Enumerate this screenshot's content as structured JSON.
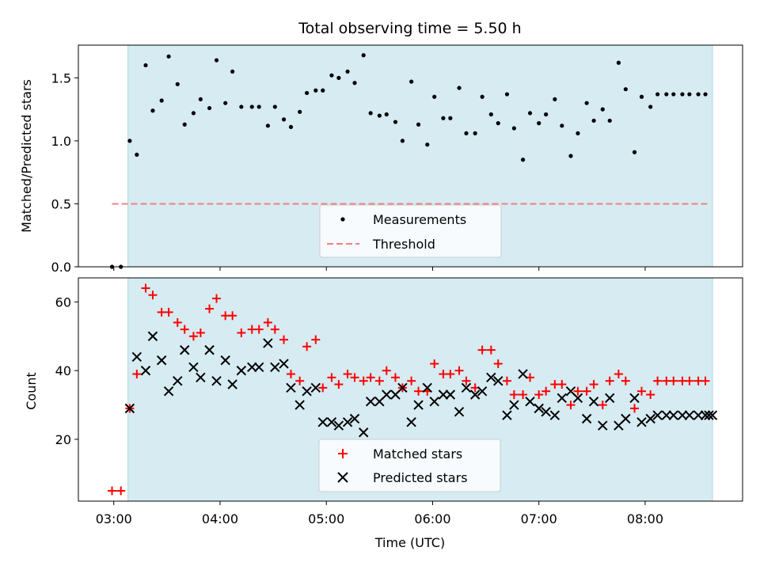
{
  "chart_data": [
    {
      "type": "scatter",
      "title": "Total observing time = 5.50 h",
      "xlabel": "",
      "ylabel": "Matched/Predicted stars",
      "ylim": [
        0,
        1.76
      ],
      "yticks": [
        "0.0",
        "0.5",
        "1.0",
        "1.5"
      ],
      "xlim": [
        "02:40",
        "08:55"
      ],
      "observing_window": [
        "03:08",
        "08:38"
      ],
      "threshold": {
        "name": "Threshold",
        "value": 0.5,
        "x_range": [
          "02:59",
          "08:36"
        ],
        "color": "#f08080"
      },
      "legend": {
        "placement": "lower-center",
        "entries": [
          "Measurements",
          "Threshold"
        ]
      },
      "series": [
        {
          "name": "Measurements",
          "color": "#000000",
          "marker": "dot",
          "x": [
            "02:59",
            "03:04",
            "03:09",
            "03:13",
            "03:18",
            "03:22",
            "03:27",
            "03:31",
            "03:36",
            "03:40",
            "03:45",
            "03:49",
            "03:54",
            "03:58",
            "04:03",
            "04:07",
            "04:12",
            "04:18",
            "04:22",
            "04:27",
            "04:31",
            "04:36",
            "04:40",
            "04:45",
            "04:49",
            "04:54",
            "04:58",
            "05:03",
            "05:07",
            "05:12",
            "05:16",
            "05:21",
            "05:25",
            "05:30",
            "05:34",
            "05:39",
            "05:43",
            "05:48",
            "05:52",
            "05:57",
            "06:01",
            "06:06",
            "06:10",
            "06:15",
            "06:19",
            "06:24",
            "06:28",
            "06:33",
            "06:37",
            "06:42",
            "06:46",
            "06:51",
            "06:55",
            "07:00",
            "07:04",
            "07:09",
            "07:13",
            "07:18",
            "07:22",
            "07:27",
            "07:31",
            "07:36",
            "07:40",
            "07:45",
            "07:49",
            "07:54",
            "07:58",
            "08:03",
            "08:07",
            "08:12",
            "08:16",
            "08:21",
            "08:25",
            "08:30",
            "08:34"
          ],
          "y": [
            0.0,
            0.0,
            1.0,
            0.89,
            1.6,
            1.24,
            1.32,
            1.67,
            1.45,
            1.13,
            1.22,
            1.33,
            1.26,
            1.64,
            1.3,
            1.55,
            1.27,
            1.27,
            1.27,
            1.12,
            1.27,
            1.17,
            1.11,
            1.23,
            1.38,
            1.4,
            1.4,
            1.52,
            1.5,
            1.55,
            1.46,
            1.68,
            1.22,
            1.2,
            1.21,
            1.15,
            1.0,
            1.47,
            1.13,
            0.97,
            1.35,
            1.18,
            1.18,
            1.42,
            1.06,
            1.06,
            1.35,
            1.21,
            1.14,
            1.37,
            1.1,
            0.85,
            1.22,
            1.14,
            1.21,
            1.33,
            1.12,
            0.88,
            1.06,
            1.3,
            1.16,
            1.25,
            1.16,
            1.62,
            1.41,
            0.91,
            1.35,
            1.27,
            1.37,
            1.37,
            1.37,
            1.37,
            1.37,
            1.37,
            1.37
          ]
        }
      ]
    },
    {
      "type": "scatter",
      "title": "",
      "xlabel": "Time (UTC)",
      "ylabel": "Count",
      "ylim": [
        2,
        67
      ],
      "yticks": [
        "20",
        "40",
        "60"
      ],
      "xticks": [
        "03:00",
        "04:00",
        "05:00",
        "06:00",
        "07:00",
        "08:00"
      ],
      "xlim": [
        "02:40",
        "08:55"
      ],
      "observing_window": [
        "03:08",
        "08:38"
      ],
      "legend": {
        "placement": "lower-center",
        "entries": [
          "Matched stars",
          "Predicted stars"
        ]
      },
      "series": [
        {
          "name": "Matched stars",
          "color": "#ff0000",
          "marker": "plus",
          "x": [
            "02:59",
            "03:04",
            "03:09",
            "03:13",
            "03:18",
            "03:22",
            "03:27",
            "03:31",
            "03:36",
            "03:40",
            "03:45",
            "03:49",
            "03:54",
            "03:58",
            "04:03",
            "04:07",
            "04:12",
            "04:18",
            "04:22",
            "04:27",
            "04:31",
            "04:36",
            "04:40",
            "04:45",
            "04:49",
            "04:54",
            "04:58",
            "05:03",
            "05:07",
            "05:12",
            "05:16",
            "05:21",
            "05:25",
            "05:30",
            "05:34",
            "05:39",
            "05:43",
            "05:48",
            "05:52",
            "05:57",
            "06:01",
            "06:06",
            "06:10",
            "06:15",
            "06:19",
            "06:24",
            "06:28",
            "06:33",
            "06:37",
            "06:42",
            "06:46",
            "06:51",
            "06:55",
            "07:00",
            "07:04",
            "07:09",
            "07:13",
            "07:18",
            "07:22",
            "07:27",
            "07:31",
            "07:36",
            "07:40",
            "07:45",
            "07:49",
            "07:54",
            "07:58",
            "08:03",
            "08:07",
            "08:12",
            "08:16",
            "08:21",
            "08:25",
            "08:30",
            "08:34"
          ],
          "y": [
            5,
            5,
            29,
            39,
            64,
            62,
            57,
            57,
            54,
            52,
            50,
            51,
            58,
            61,
            56,
            56,
            51,
            52,
            52,
            54,
            52,
            49,
            39,
            37,
            47,
            49,
            35,
            38,
            36,
            39,
            38,
            37,
            38,
            37,
            40,
            38,
            35,
            37,
            34,
            34,
            42,
            39,
            39,
            40,
            37,
            35,
            46,
            46,
            42,
            37,
            33,
            33,
            38,
            33,
            34,
            36,
            36,
            30,
            34,
            34,
            36,
            30,
            37,
            39,
            37,
            29,
            34,
            33,
            37,
            37,
            37,
            37,
            37,
            37,
            37
          ]
        },
        {
          "name": "Predicted stars",
          "color": "#000000",
          "marker": "x",
          "x": [
            "03:09",
            "03:13",
            "03:18",
            "03:22",
            "03:27",
            "03:31",
            "03:36",
            "03:40",
            "03:45",
            "03:49",
            "03:54",
            "03:58",
            "04:03",
            "04:07",
            "04:12",
            "04:18",
            "04:22",
            "04:27",
            "04:31",
            "04:36",
            "04:40",
            "04:45",
            "04:49",
            "04:54",
            "04:58",
            "05:03",
            "05:07",
            "05:12",
            "05:16",
            "05:21",
            "05:25",
            "05:30",
            "05:34",
            "05:39",
            "05:43",
            "05:48",
            "05:52",
            "05:57",
            "06:01",
            "06:06",
            "06:10",
            "06:15",
            "06:19",
            "06:24",
            "06:28",
            "06:33",
            "06:37",
            "06:42",
            "06:46",
            "06:51",
            "06:55",
            "07:00",
            "07:04",
            "07:09",
            "07:13",
            "07:18",
            "07:22",
            "07:27",
            "07:31",
            "07:36",
            "07:40",
            "07:45",
            "07:49",
            "07:54",
            "07:58",
            "08:03",
            "08:07",
            "08:12",
            "08:16",
            "08:21",
            "08:25",
            "08:30",
            "08:34",
            "08:36",
            "08:38"
          ],
          "y": [
            29,
            44,
            40,
            50,
            43,
            34,
            37,
            46,
            41,
            38,
            46,
            37,
            43,
            36,
            40,
            41,
            41,
            48,
            41,
            42,
            35,
            30,
            34,
            35,
            25,
            25,
            24,
            25,
            26,
            22,
            31,
            31,
            33,
            33,
            35,
            25,
            30,
            35,
            31,
            33,
            33,
            28,
            35,
            33,
            34,
            38,
            37,
            27,
            30,
            39,
            31,
            29,
            28,
            27,
            32,
            34,
            32,
            26,
            31,
            24,
            32,
            24,
            26,
            32,
            25,
            26,
            27,
            27,
            27,
            27,
            27,
            27,
            27,
            27,
            27
          ]
        }
      ]
    }
  ]
}
